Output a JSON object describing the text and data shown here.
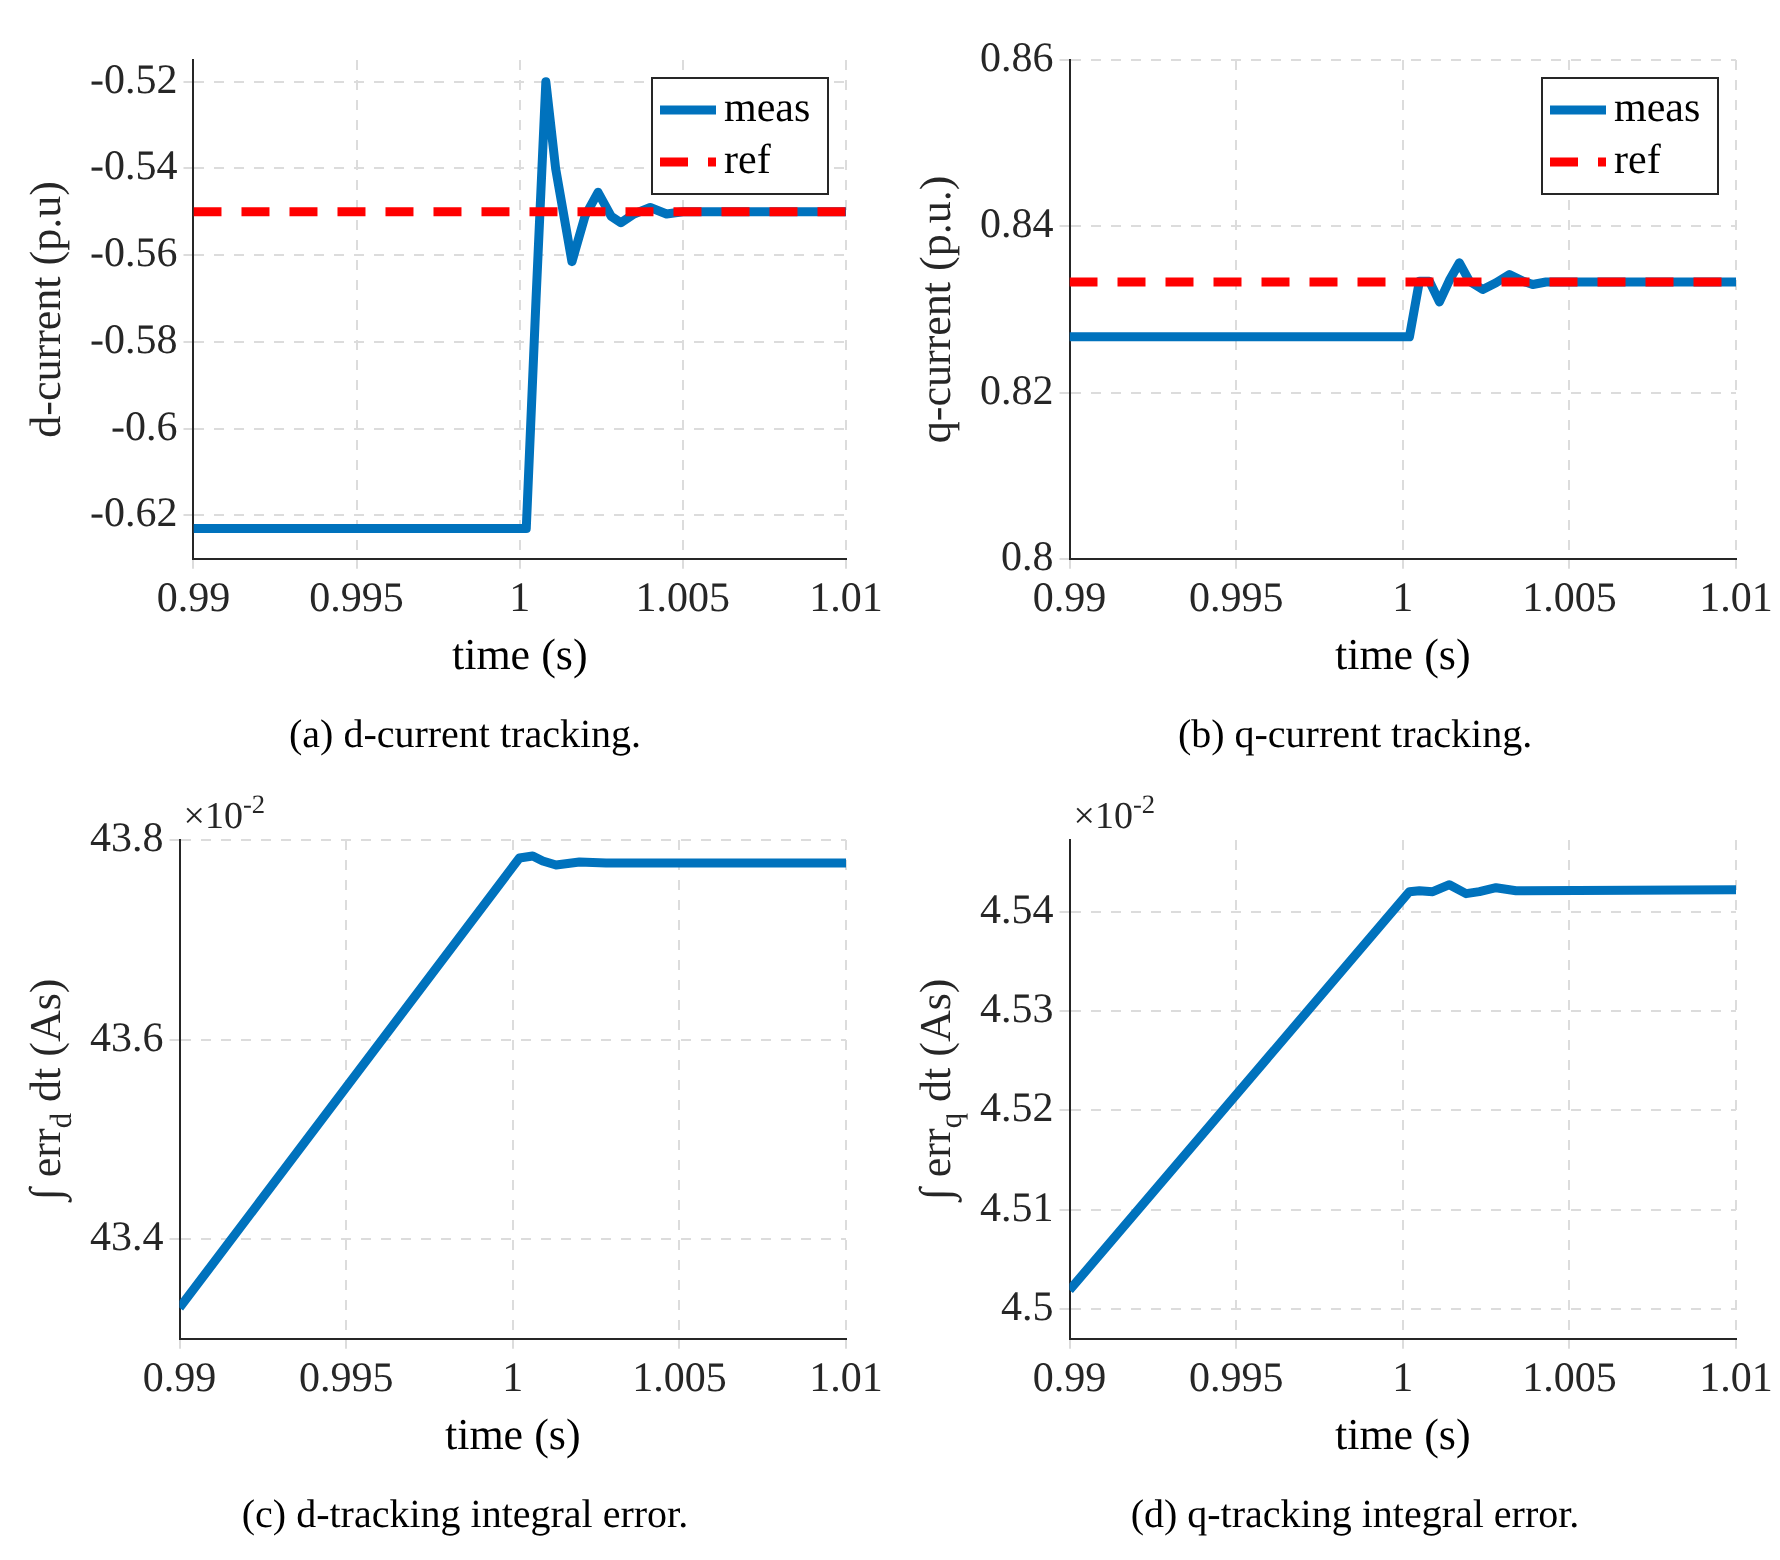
{
  "chart_data": [
    {
      "type": "line",
      "title": "(a) d-current tracking.",
      "xlabel": "time (s)",
      "ylabel": "d-current (p.u)",
      "xlim": [
        0.99,
        1.01
      ],
      "xticks": [
        0.99,
        0.995,
        1,
        1.005,
        1.01
      ],
      "ylim": [
        -0.63,
        -0.515
      ],
      "yticks": [
        -0.62,
        -0.6,
        -0.58,
        -0.56,
        -0.54,
        -0.52
      ],
      "grid": true,
      "legend": "top right",
      "series": [
        {
          "name": "meas",
          "color": "#0072bd",
          "line_style": "solid",
          "x": [
            0.99,
            1.0002,
            1.0005,
            1.0008,
            1.0011,
            1.0016,
            1.002,
            1.0024,
            1.0028,
            1.0031,
            1.0035,
            1.004,
            1.0045,
            1.005,
            1.01
          ],
          "values": [
            -0.623,
            -0.623,
            -0.57,
            -0.52,
            -0.54,
            -0.5615,
            -0.551,
            -0.5455,
            -0.551,
            -0.5525,
            -0.5505,
            -0.549,
            -0.5505,
            -0.55,
            -0.55
          ]
        },
        {
          "name": "ref",
          "color": "#ff0000",
          "line_style": "dashed",
          "x": [
            0.99,
            1.01
          ],
          "values": [
            -0.55,
            -0.55
          ]
        }
      ]
    },
    {
      "type": "line",
      "title": "(b) q-current tracking.",
      "xlabel": "time (s)",
      "ylabel": "q-current (p.u.)",
      "xlim": [
        0.99,
        1.01
      ],
      "xticks": [
        0.99,
        0.995,
        1,
        1.005,
        1.01
      ],
      "ylim": [
        0.8,
        0.86
      ],
      "yticks": [
        0.8,
        0.82,
        0.84,
        0.86
      ],
      "grid": true,
      "legend": "top right",
      "series": [
        {
          "name": "meas",
          "color": "#0072bd",
          "line_style": "solid",
          "x": [
            0.99,
            1.0002,
            1.0005,
            1.0008,
            1.0011,
            1.0014,
            1.0017,
            1.002,
            1.0024,
            1.0028,
            1.0032,
            1.0036,
            1.0039,
            1.0043,
            1.01
          ],
          "values": [
            0.8267,
            0.8267,
            0.8334,
            0.8334,
            0.8309,
            0.8335,
            0.8356,
            0.8334,
            0.8324,
            0.8332,
            0.8342,
            0.8334,
            0.833,
            0.8333,
            0.8333
          ]
        },
        {
          "name": "ref",
          "color": "#ff0000",
          "line_style": "dashed",
          "x": [
            0.99,
            1.01
          ],
          "values": [
            0.8333,
            0.8333
          ]
        }
      ]
    },
    {
      "type": "line",
      "title": "(c) d-tracking integral error.",
      "xlabel": "time (s)",
      "ylabel": "∫ err$_{d}$ dt (As)",
      "annotations": [
        "×10$^{-2}$"
      ],
      "xlim": [
        0.99,
        1.01
      ],
      "xticks": [
        0.99,
        0.995,
        1,
        1.005,
        1.01
      ],
      "ylim": [
        43.3,
        43.8
      ],
      "yticks": [
        43.4,
        43.6,
        43.8
      ],
      "grid": true,
      "series": [
        {
          "color": "#0072bd",
          "line_style": "solid",
          "x": [
            0.99,
            1.0002,
            1.0006,
            1.0009,
            1.0013,
            1.002,
            1.0028,
            1.01
          ],
          "values": [
            43.331,
            43.782,
            43.784,
            43.779,
            43.775,
            43.778,
            43.777,
            43.777
          ]
        }
      ]
    },
    {
      "type": "line",
      "title": "(d) q-tracking integral error.",
      "xlabel": "time (s)",
      "ylabel": "∫ err$_{q}$ dt (As)",
      "annotations": [
        "×10$^{-2}$"
      ],
      "xlim": [
        0.99,
        1.01
      ],
      "xticks": [
        0.99,
        0.995,
        1,
        1.005,
        1.01
      ],
      "ylim": [
        4.497,
        4.5472
      ],
      "yticks": [
        4.5,
        4.51,
        4.52,
        4.53,
        4.54
      ],
      "grid": true,
      "series": [
        {
          "color": "#0072bd",
          "line_style": "solid",
          "x": [
            0.99,
            1.0002,
            1.0005,
            1.0009,
            1.0014,
            1.0019,
            1.0023,
            1.0028,
            1.0034,
            1.01
          ],
          "values": [
            4.5019,
            4.542,
            4.5421,
            4.542,
            4.5427,
            4.5418,
            4.542,
            4.5424,
            4.5421,
            4.5422
          ]
        }
      ]
    }
  ]
}
